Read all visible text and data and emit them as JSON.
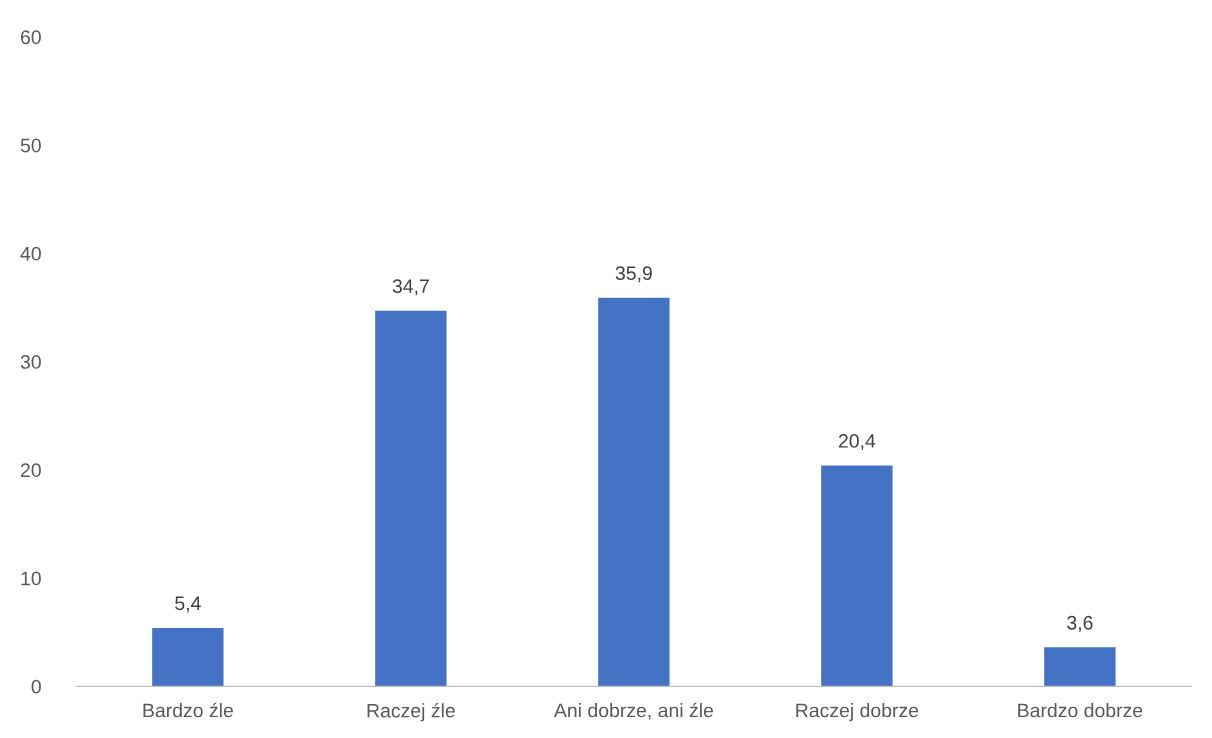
{
  "chart_data": {
    "type": "bar",
    "categories": [
      "Bardzo źle",
      "Raczej źle",
      "Ani dobrze, ani źle",
      "Raczej dobrze",
      "Bardzo dobrze"
    ],
    "values": [
      5.4,
      34.7,
      35.9,
      20.4,
      3.6
    ],
    "value_labels": [
      "5,4",
      "34,7",
      "35,9",
      "20,4",
      "3,6"
    ],
    "color": "#4472c4",
    "ylim": [
      0,
      60
    ],
    "yticks": [
      0,
      10,
      20,
      30,
      40,
      50,
      60
    ],
    "grid": false,
    "legend": false
  }
}
